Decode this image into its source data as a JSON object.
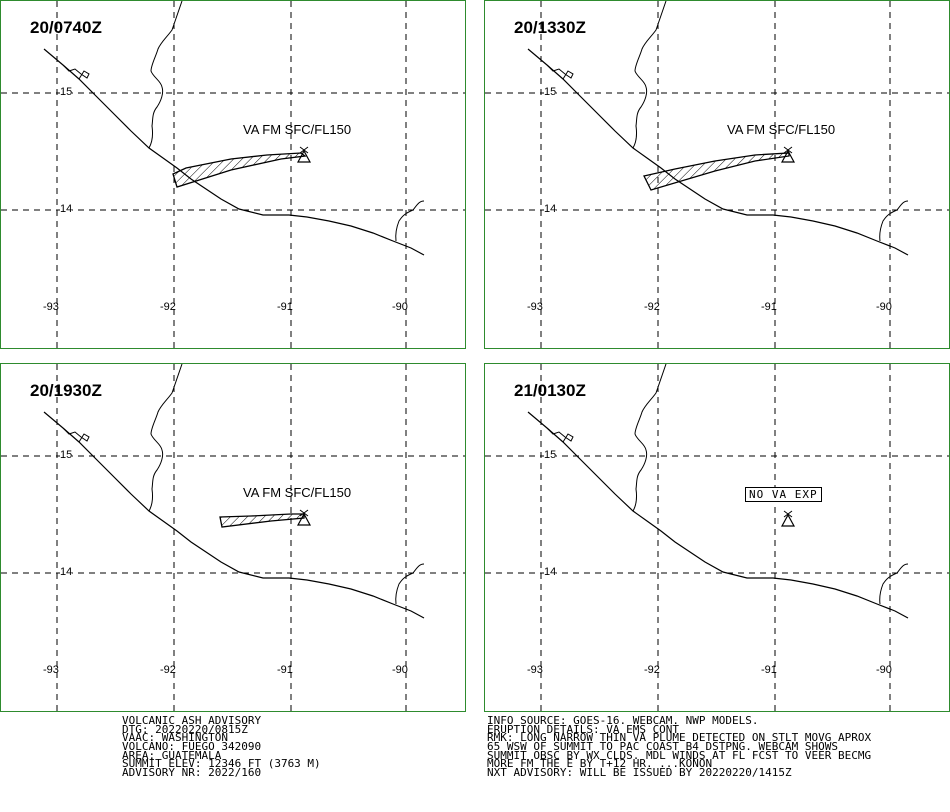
{
  "panels": [
    {
      "time": "20/0740Z",
      "label": "VA FM SFC/FL150"
    },
    {
      "time": "20/1330Z",
      "label": "VA FM SFC/FL150"
    },
    {
      "time": "20/1930Z",
      "label": "VA FM SFC/FL150"
    },
    {
      "time": "21/0130Z",
      "label": "NO VA EXP"
    }
  ],
  "lat_labels": [
    "15",
    "14"
  ],
  "lon_labels": [
    "-93",
    "-92",
    "-91",
    "-90"
  ],
  "advisory_left": [
    "VOLCANIC ASH ADVISORY",
    "DTG: 20220220/0815Z",
    "VAAC: WASHINGTON",
    "VOLCANO: FUEGO 342090",
    "AREA: GUATEMALA",
    "SUMMIT ELEV: 12346 FT (3763 M)",
    "ADVISORY NR: 2022/160"
  ],
  "advisory_right": [
    "INFO SOURCE: GOES-16. WEBCAM. NWP MODELS.",
    "ERUPTION DETAILS: VA EMS CONT",
    "RMK: LONG NARROW THIN VA PLUME DETECTED ON STLT MOVG APROX",
    "65 WSW OF SUMMIT TO PAC COAST B4 DSTPNG. WEBCAM SHOWS",
    "SUMMIT OBSC BY WX CLDS. MDL WINDS AT FL FCST TO VEER BECMG",
    "MORE FM THE E BY T+12 HR. ...KONON",
    "NXT ADVISORY: WILL BE ISSUED BY 20220220/1415Z"
  ],
  "colors": {
    "panel_border": "#2e8b2e",
    "line": "#000000"
  },
  "icons": {
    "volcano": "volcano-triangle-icon"
  }
}
